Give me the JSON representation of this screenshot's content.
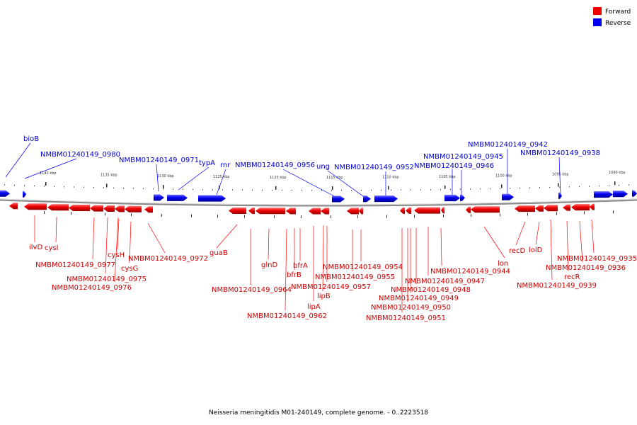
{
  "legend": [
    {
      "label": "Forward",
      "color": "#ff0000"
    },
    {
      "label": "Reverse",
      "color": "#0000ff"
    }
  ],
  "colors": {
    "forward": "#ff0000",
    "reverse": "#0000ff",
    "backbone": "#888888"
  },
  "caption": "Neisseria meningitidis M01-240149, complete genome. - 0..2223518",
  "scale_labels": [
    "1140 kbp",
    "1135 kbp",
    "1130 kbp",
    "1125 kbp",
    "1120 kbp",
    "1115 kbp",
    "1110 kbp",
    "1105 kbp",
    "1100 kbp",
    "1095 kbp",
    "1090 kbp"
  ],
  "reverse_labels": [
    "bioB",
    "NMBM01240149_0980",
    "NMBM01240149_0971",
    "typA",
    "rnr",
    "NMBM01240149_0956",
    "ung",
    "NMBM01240149_0952",
    "NMBM01240149_0945",
    "NMBM01240149_0946",
    "NMBM01240149_0942",
    "NMBM01240149_0938"
  ],
  "forward_labels": [
    "ilvD",
    "cysI",
    "NMBM01240149_0977",
    "NMBM01240149_0975",
    "NMBM01240149_0976",
    "cysH",
    "cysG",
    "NMBM01240149_0972",
    "guaB",
    "NMBM01240149_0964",
    "glnD",
    "bfrB",
    "bfrA",
    "NMBM01240149_0962",
    "lipA",
    "lipB",
    "NMBM01240149_0957",
    "NMBM01240149_0955",
    "NMBM01240149_0954",
    "NMBM01240149_0951",
    "NMBM01240149_0950",
    "NMBM01240149_0949",
    "NMBM01240149_0948",
    "NMBM01240149_0947",
    "NMBM01240149_0944",
    "lon",
    "recD",
    "lolD",
    "NMBM01240149_0939",
    "recR",
    "NMBM01240149_0936",
    "NMBM01240149_0935"
  ]
}
